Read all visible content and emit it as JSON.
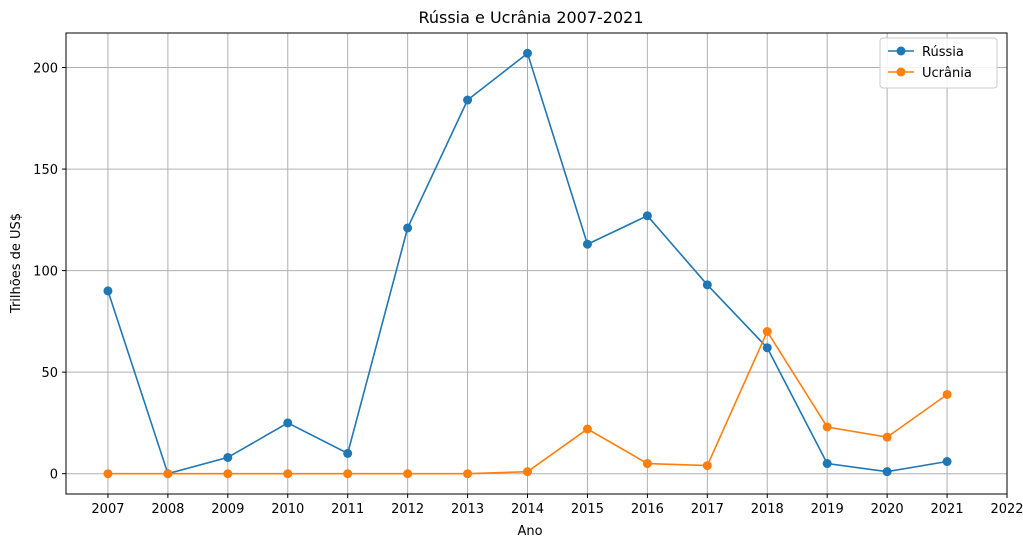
{
  "chart_data": {
    "type": "line",
    "title": "Rússia e Ucrânia 2007-2021",
    "xlabel": "Ano",
    "ylabel": "Trilhões de US$",
    "x_ticks": [
      "2007",
      "2008",
      "2009",
      "2010",
      "2011",
      "2012",
      "2013",
      "2014",
      "2015",
      "2016",
      "2017",
      "2018",
      "2019",
      "2020",
      "2021",
      "2022"
    ],
    "y_ticks": [
      "0",
      "50",
      "100",
      "150",
      "200"
    ],
    "xlim": [
      2006.3,
      2022
    ],
    "ylim": [
      -10,
      217
    ],
    "grid": true,
    "legend_position": "top-right",
    "series": [
      {
        "name": "Rússia",
        "color": "#1f77b4",
        "x": [
          2007,
          2008,
          2009,
          2010,
          2011,
          2012,
          2013,
          2014,
          2015,
          2016,
          2017,
          2018,
          2019,
          2020,
          2021
        ],
        "values": [
          90,
          0,
          8,
          25,
          10,
          121,
          184,
          207,
          113,
          127,
          93,
          62,
          5,
          1,
          6
        ]
      },
      {
        "name": "Ucrânia",
        "color": "#ff7f0e",
        "x": [
          2007,
          2008,
          2009,
          2010,
          2011,
          2012,
          2013,
          2014,
          2015,
          2016,
          2017,
          2018,
          2019,
          2020,
          2021
        ],
        "values": [
          0,
          0,
          0,
          0,
          0,
          0,
          0,
          1,
          22,
          5,
          4,
          70,
          23,
          18,
          39
        ]
      }
    ]
  }
}
